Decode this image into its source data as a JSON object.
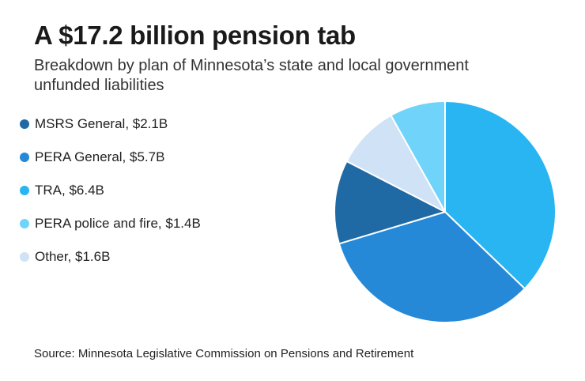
{
  "title": "A $17.2 billion pension tab",
  "subtitle": "Breakdown by plan of Minnesota’s state and local government unfunded liabilities",
  "source": "Source: Minnesota Legislative Commission on Pensions and Retirement",
  "chart_data": {
    "type": "pie",
    "title": "A $17.2 billion pension tab",
    "subtitle": "Breakdown by plan of Minnesota’s state and local government unfunded liabilities",
    "unit": "billion USD",
    "legend_position": "left",
    "slices": [
      {
        "name": "MSRS General",
        "value": 2.1,
        "label": "MSRS General, $2.1B",
        "color": "#1f6aa5"
      },
      {
        "name": "PERA General",
        "value": 5.7,
        "label": "PERA General, $5.7B",
        "color": "#2589d8"
      },
      {
        "name": "TRA",
        "value": 6.4,
        "label": "TRA, $6.4B",
        "color": "#29b4f2"
      },
      {
        "name": "PERA police and fire",
        "value": 1.4,
        "label": "PERA police and fire, $1.4B",
        "color": "#6fd3fa"
      },
      {
        "name": "Other",
        "value": 1.6,
        "label": "Other, $1.6B",
        "color": "#cfe2f6"
      }
    ],
    "drawing_order": [
      "TRA",
      "PERA General",
      "MSRS General",
      "Other",
      "PERA police and fire"
    ],
    "start_angle": "12 o'clock",
    "direction": "clockwise"
  }
}
